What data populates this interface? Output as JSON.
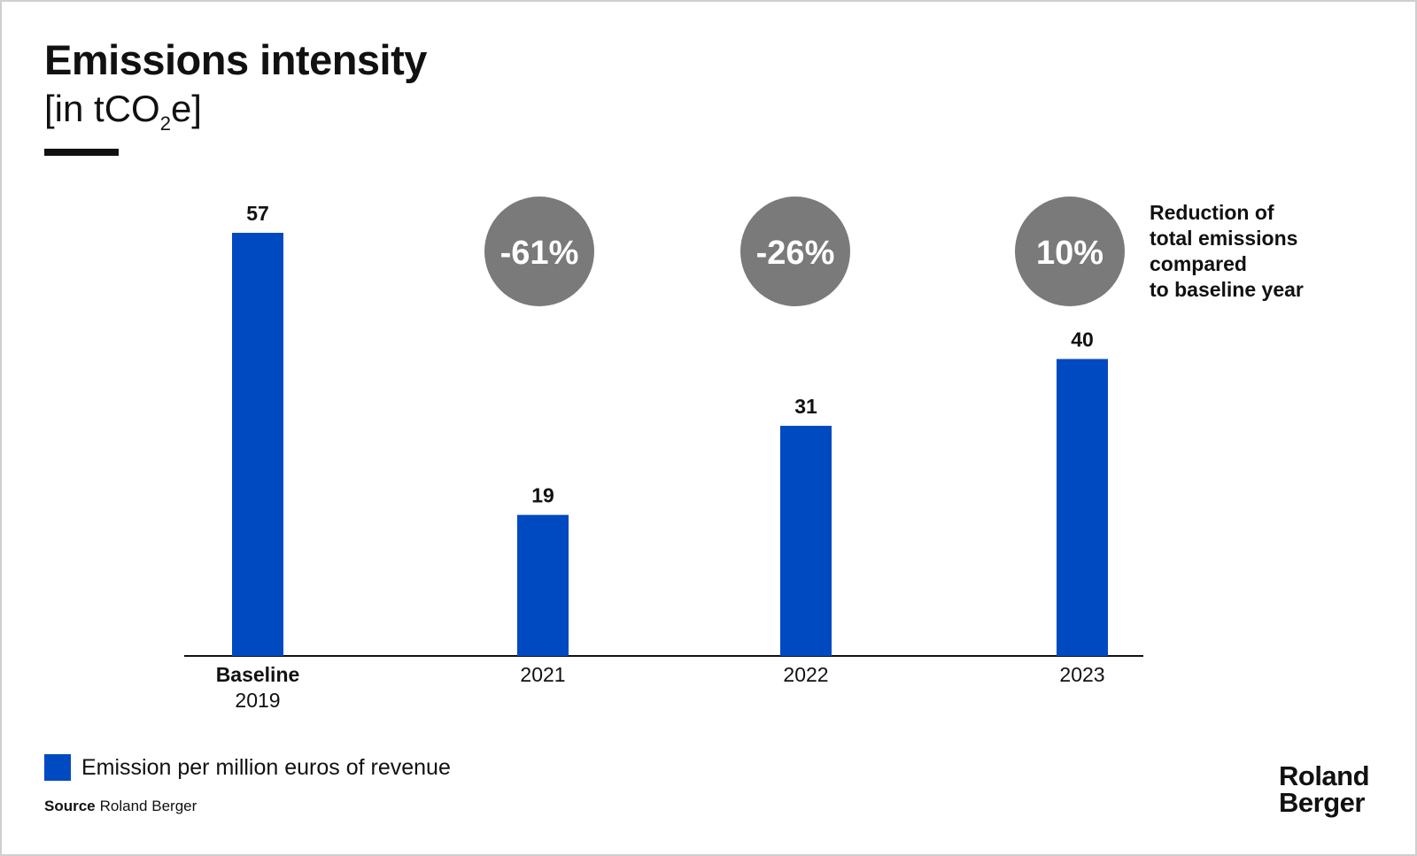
{
  "header": {
    "title": "Emissions intensity",
    "unit_prefix": "[in tCO",
    "unit_sub": "2",
    "unit_suffix": "e]"
  },
  "chart_data": {
    "type": "bar",
    "categories": [
      {
        "line1": "Baseline",
        "line2": "2019"
      },
      {
        "line1": "2021",
        "line2": ""
      },
      {
        "line1": "2022",
        "line2": ""
      },
      {
        "line1": "2023",
        "line2": ""
      }
    ],
    "series": [
      {
        "name": "Emission per million euros of revenue",
        "values": [
          57,
          19,
          31,
          40
        ]
      }
    ],
    "ylim": [
      0,
      57
    ],
    "grid": false,
    "annotations": {
      "reduction_badges": [
        {
          "category_index": 1,
          "label": "-61%"
        },
        {
          "category_index": 2,
          "label": "-26%"
        },
        {
          "category_index": 3,
          "label": "10%"
        }
      ],
      "note_lines": [
        "Reduction of",
        "total emissions",
        "compared",
        "to baseline year"
      ]
    }
  },
  "legend": {
    "label": "Emission per million euros of revenue",
    "placement": "bottom-left"
  },
  "footer": {
    "source_key": "Source",
    "source_value": "Roland Berger"
  },
  "logo": {
    "line1": "Roland",
    "line2": "Berger"
  },
  "colors": {
    "bar": "#004AC1",
    "badge": "#7A7A7A",
    "axis": "#111111",
    "text": "#111111"
  }
}
